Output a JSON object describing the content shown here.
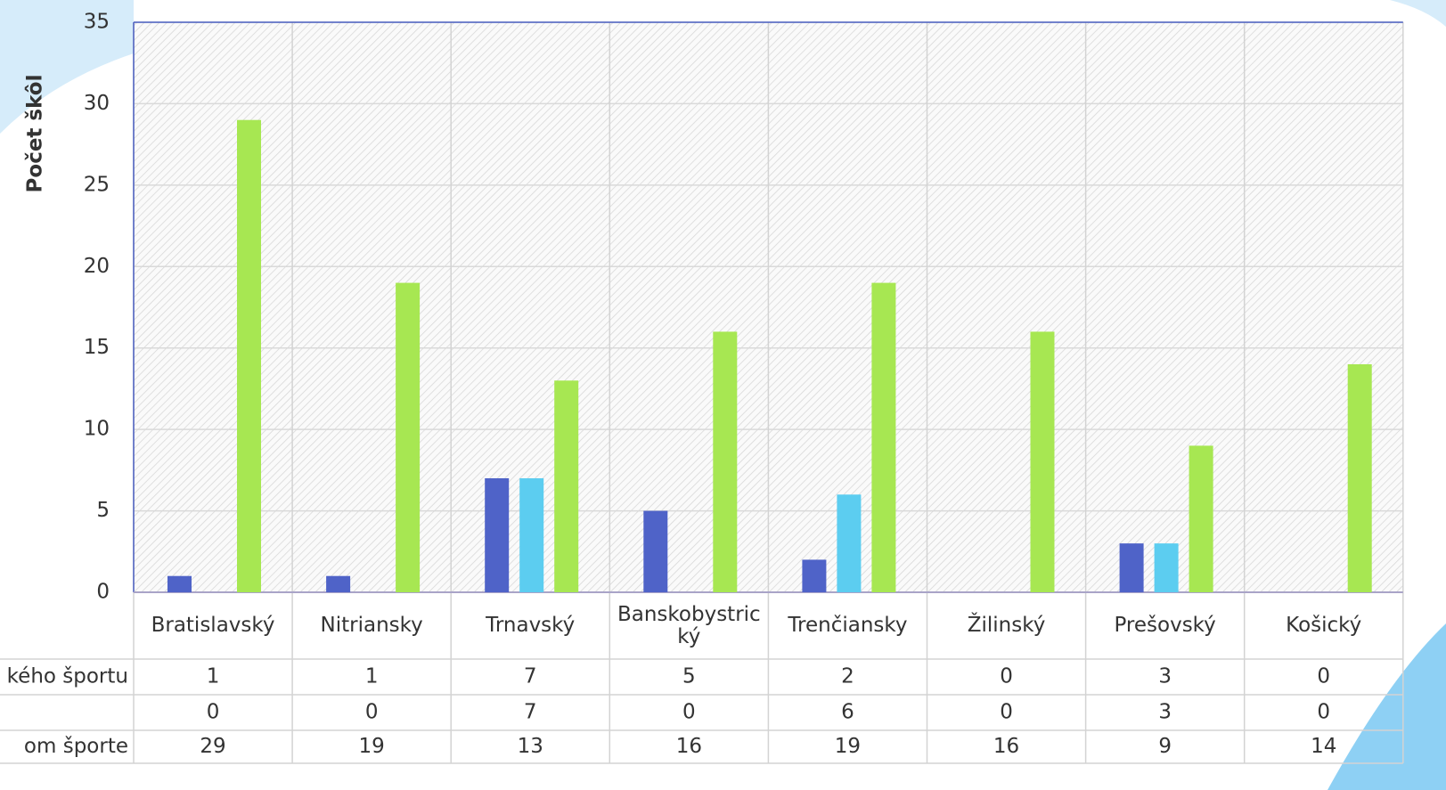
{
  "chart_data": {
    "type": "bar",
    "y_label": "Počet škôl",
    "categories": [
      "Bratislavský",
      "Nitriansky",
      "Trnavský",
      "Banskobystrický",
      "Trenčiansky",
      "Žilinský",
      "Prešovský",
      "Košický"
    ],
    "series": [
      {
        "name": "kého športu",
        "color": "#4f63c8",
        "values": [
          1,
          1,
          7,
          5,
          2,
          0,
          3,
          0
        ]
      },
      {
        "color": "#5ccdf0",
        "values": [
          0,
          0,
          7,
          0,
          6,
          0,
          3,
          0
        ]
      },
      {
        "name": "om športe",
        "color": "#a7e752",
        "values": [
          29,
          19,
          13,
          16,
          19,
          16,
          9,
          14
        ]
      }
    ],
    "ylim": [
      0,
      35
    ],
    "yticks": [
      0,
      5,
      10,
      15,
      20,
      25,
      30,
      35
    ],
    "grid": true
  }
}
